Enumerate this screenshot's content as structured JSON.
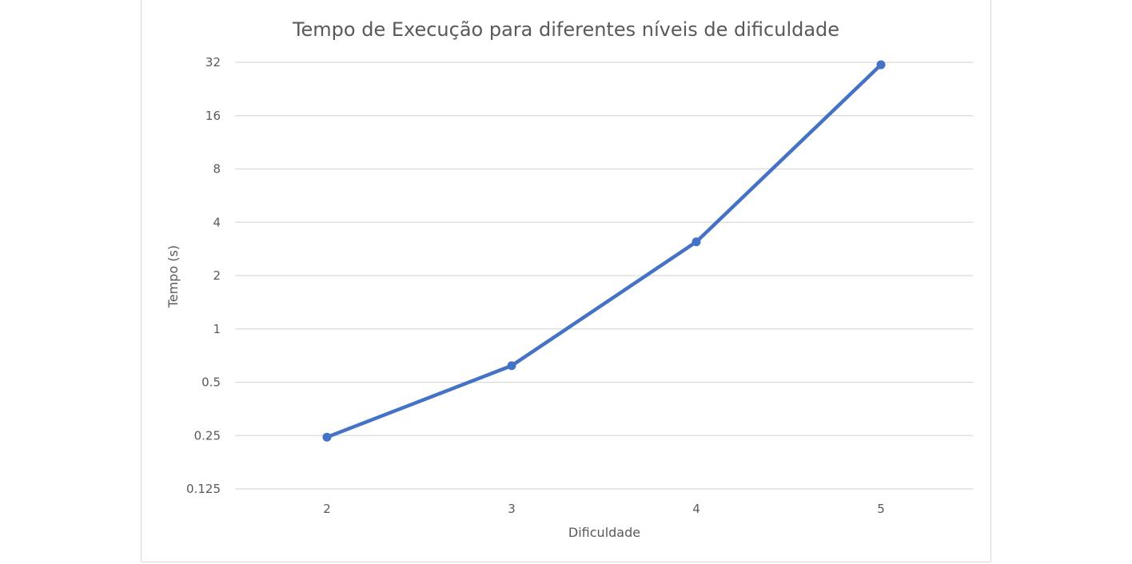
{
  "chart_data": {
    "type": "line",
    "title": "Tempo de Execução para diferentes níveis de dificuldade",
    "xlabel": "Dificuldade",
    "ylabel": "Tempo (s)",
    "y_scale": "log2",
    "ylim": [
      0.125,
      32
    ],
    "x_ticks": [
      "2",
      "3",
      "4",
      "5"
    ],
    "y_ticks": [
      "0.125",
      "0.25",
      "0.5",
      "1",
      "2",
      "4",
      "8",
      "16",
      "32"
    ],
    "grid": "horizontal",
    "legend": "none",
    "series": [
      {
        "x": [
          2,
          3,
          4,
          5
        ],
        "values": [
          0.245,
          0.62,
          3.1,
          31
        ],
        "color": "#4472c4"
      }
    ]
  }
}
